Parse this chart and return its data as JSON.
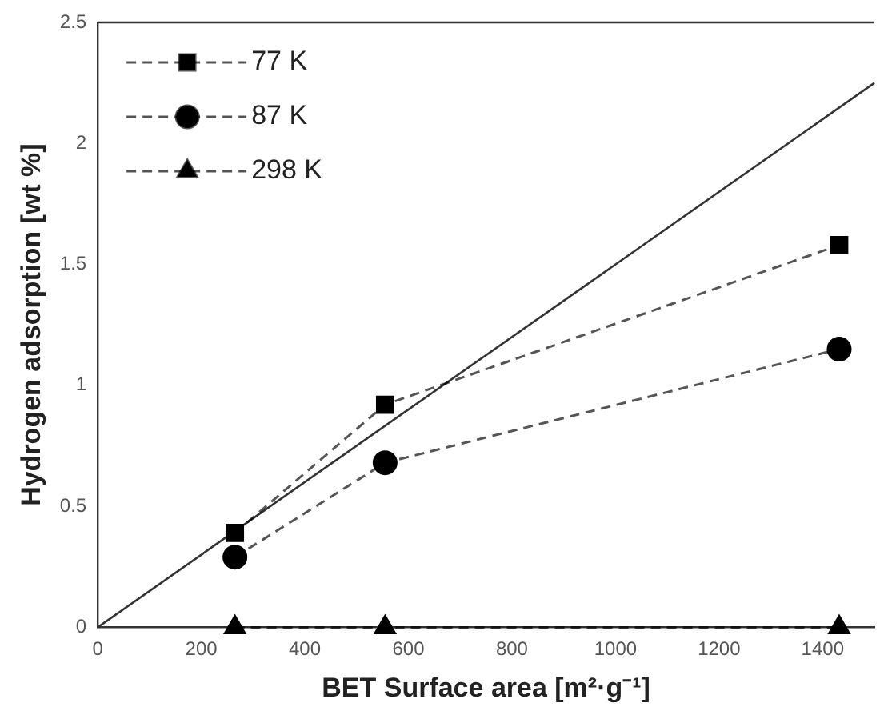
{
  "chart_data": {
    "type": "line",
    "xlabel": "BET Surface area [m²·g⁻¹]",
    "ylabel": "Hydrogen adsorption [wt %]",
    "xlim": [
      0,
      1500
    ],
    "xticks": [
      0,
      200,
      400,
      600,
      800,
      1000,
      1200,
      1400
    ],
    "ylim": [
      0,
      2.5
    ],
    "yticks": [
      0,
      0.5,
      1,
      1.5,
      2,
      2.5
    ],
    "grid": false,
    "legend": "top left",
    "line_style": "dashed",
    "x": [
      265,
      555,
      1432
    ],
    "series": [
      {
        "name": "77 K",
        "color": "#000000",
        "marker": "square",
        "values": [
          0.39,
          0.92,
          1.58
        ]
      },
      {
        "name": "87 K",
        "color": "#000000",
        "marker": "circle",
        "values": [
          0.29,
          0.68,
          1.15
        ]
      },
      {
        "name": "298 K",
        "color": "#000000",
        "marker": "triangle",
        "values": [
          0,
          0,
          0
        ]
      },
      {
        "type": "line",
        "color": "#333333",
        "marker": "none",
        "line_style": "solid",
        "x": [
          0,
          1500
        ],
        "values": [
          0,
          2.25
        ]
      }
    ]
  }
}
